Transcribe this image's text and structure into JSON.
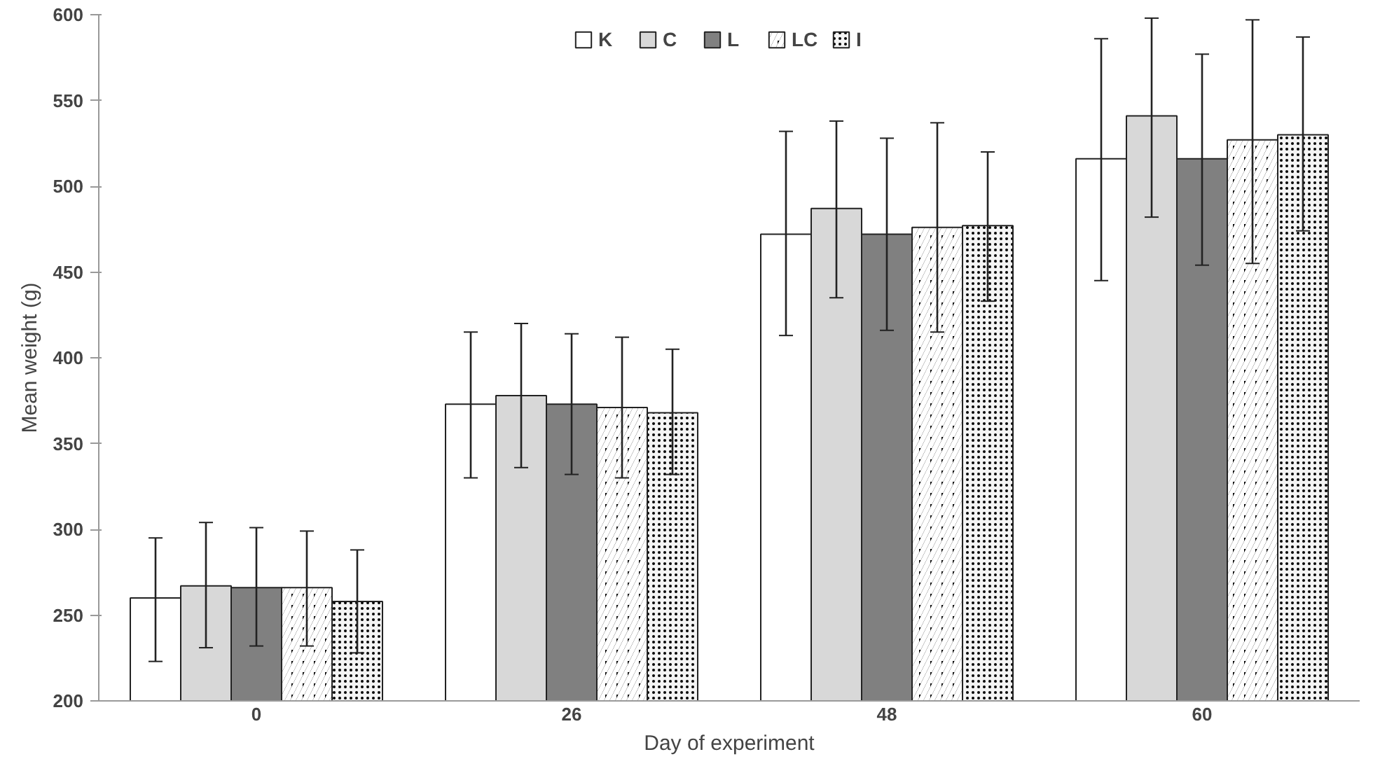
{
  "chart_data": {
    "type": "bar",
    "xlabel": "Day of experiment",
    "ylabel": "Mean weight (g)",
    "categories": [
      "0",
      "26",
      "48",
      "60"
    ],
    "series": [
      {
        "name": "K",
        "color": "#ffffff",
        "values": [
          260,
          373,
          472,
          516
        ],
        "errors": [
          [
            223,
            295
          ],
          [
            330,
            415
          ],
          [
            413,
            532
          ],
          [
            445,
            586
          ]
        ]
      },
      {
        "name": "C",
        "color": "#d8d8d8",
        "values": [
          267,
          378,
          487,
          541
        ],
        "errors": [
          [
            231,
            304
          ],
          [
            336,
            420
          ],
          [
            435,
            538
          ],
          [
            482,
            598
          ]
        ]
      },
      {
        "name": "L",
        "color": "#808080",
        "values": [
          266,
          373,
          472,
          516
        ],
        "errors": [
          [
            232,
            301
          ],
          [
            332,
            414
          ],
          [
            416,
            528
          ],
          [
            454,
            577
          ]
        ]
      },
      {
        "name": "LC",
        "color": "#000000",
        "values": [
          266,
          371,
          476,
          527
        ],
        "errors": [
          [
            232,
            299
          ],
          [
            330,
            412
          ],
          [
            415,
            537
          ],
          [
            455,
            597
          ]
        ]
      },
      {
        "name": "I",
        "color": "#f4f4f4",
        "values": [
          258,
          368,
          477,
          530
        ],
        "errors": [
          [
            228,
            288
          ],
          [
            332,
            405
          ],
          [
            433,
            520
          ],
          [
            474,
            587
          ]
        ]
      }
    ],
    "ylim": [
      200,
      600
    ],
    "yticks": [
      200,
      250,
      300,
      350,
      400,
      450,
      500,
      550,
      600
    ],
    "grid": false,
    "legend": "top"
  }
}
